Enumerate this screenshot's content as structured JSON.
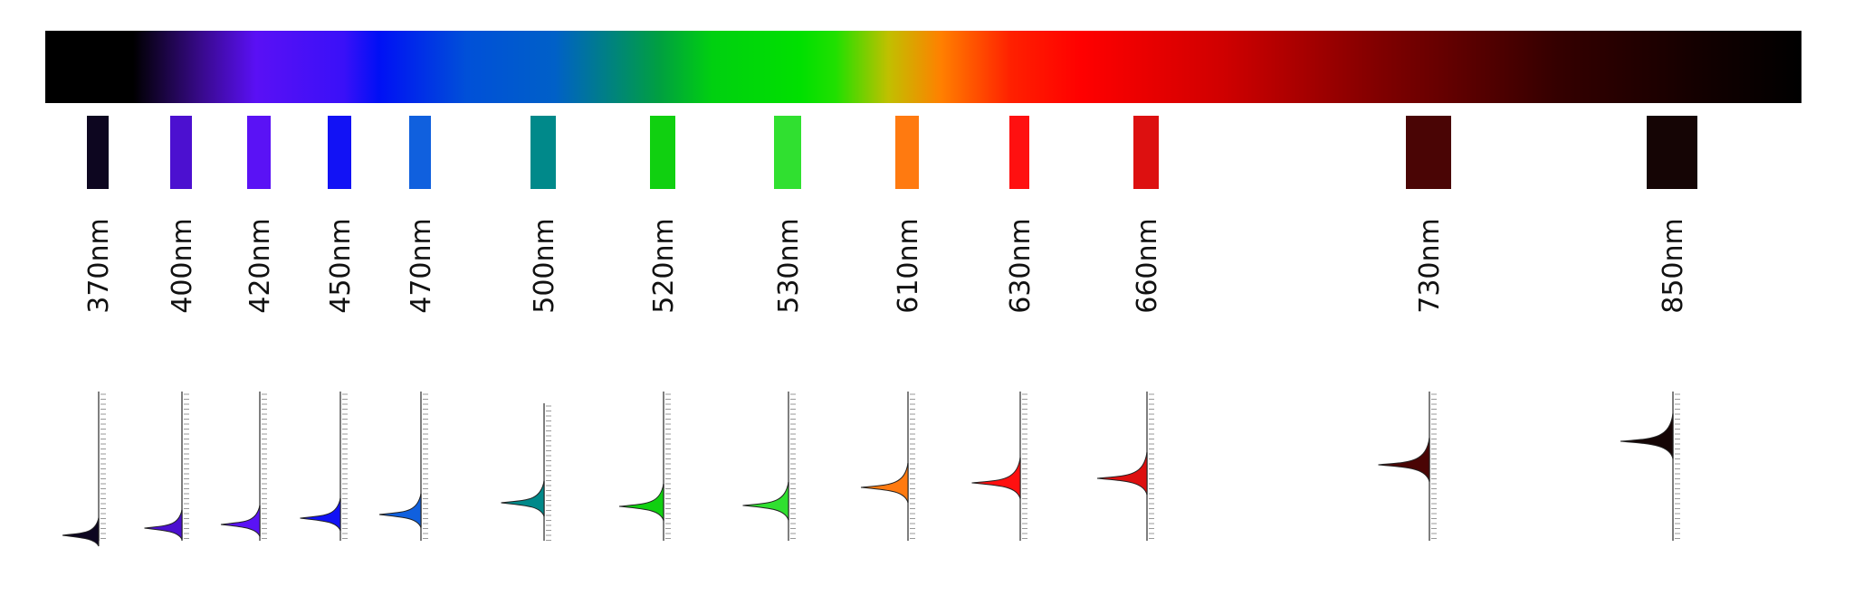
{
  "items": [
    {
      "label": "370nm",
      "color": "#0d0620"
    },
    {
      "label": "400nm",
      "color": "#4c10d0"
    },
    {
      "label": "420nm",
      "color": "#5a12f5"
    },
    {
      "label": "450nm",
      "color": "#1212f5"
    },
    {
      "label": "470nm",
      "color": "#1060de"
    },
    {
      "label": "500nm",
      "color": "#00898a"
    },
    {
      "label": "520nm",
      "color": "#10d010"
    },
    {
      "label": "530nm",
      "color": "#30e030"
    },
    {
      "label": "610nm",
      "color": "#ff7a10"
    },
    {
      "label": "630nm",
      "color": "#ff1010"
    },
    {
      "label": "660nm",
      "color": "#dd1010"
    },
    {
      "label": "730nm",
      "color": "#4a0505"
    },
    {
      "label": "850nm",
      "color": "#150505"
    }
  ]
}
